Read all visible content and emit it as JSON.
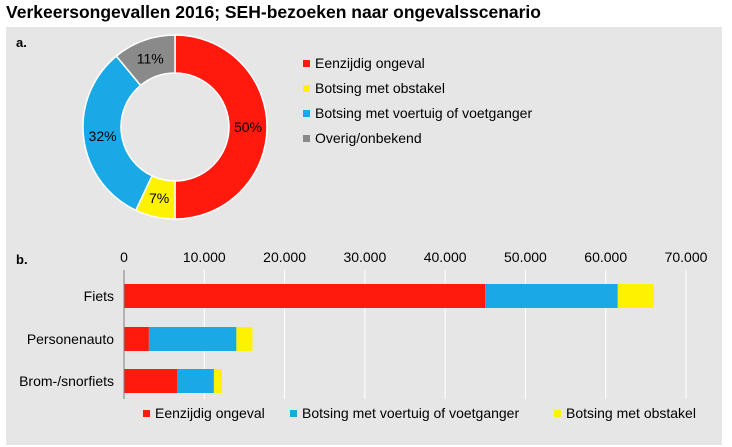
{
  "title": "Verkeersongevallen 2016; SEH-bezoeken naar ongevalsscenario",
  "colors": {
    "eenzijdig": "#ff1a0d",
    "obstakel": "#fff200",
    "voertuig": "#19a9e6",
    "overig": "#8a8a8a",
    "background": "#e6e6e6",
    "grid": "#ffffff"
  },
  "chart_data": [
    {
      "panel_label": "a.",
      "type": "pie",
      "donut": true,
      "labels": [
        "Eenzijdig ongeval",
        "Botsing met obstakel",
        "Botsing met voertuig of voetganger",
        "Overig/onbekend"
      ],
      "values": [
        50,
        7,
        32,
        11
      ],
      "value_labels": [
        "50%",
        "7%",
        "32%",
        "11%"
      ],
      "color_keys": [
        "eenzijdig",
        "obstakel",
        "voertuig",
        "overig"
      ],
      "legend_position": "right"
    },
    {
      "panel_label": "b.",
      "type": "bar",
      "orientation": "horizontal",
      "stacked": true,
      "categories": [
        "Fiets",
        "Personenauto",
        "Brom-/snorfiets"
      ],
      "series": [
        {
          "name": "Eenzijdig ongeval",
          "color_key": "eenzijdig",
          "values": [
            45000,
            3100,
            6600
          ]
        },
        {
          "name": "Botsing met voertuig of voetganger",
          "color_key": "voertuig",
          "values": [
            16500,
            10900,
            4600
          ]
        },
        {
          "name": "Botsing met obstakel",
          "color_key": "obstakel",
          "values": [
            4500,
            2000,
            1000
          ]
        }
      ],
      "xlim": [
        0,
        70000
      ],
      "xticks": [
        0,
        10000,
        20000,
        30000,
        40000,
        50000,
        60000,
        70000
      ],
      "xtick_labels": [
        "0",
        "10.000",
        "20.000",
        "30.000",
        "40.000",
        "50.000",
        "60.000",
        "70.000"
      ],
      "axis_position": "top",
      "grid": true,
      "legend_position": "bottom"
    }
  ]
}
